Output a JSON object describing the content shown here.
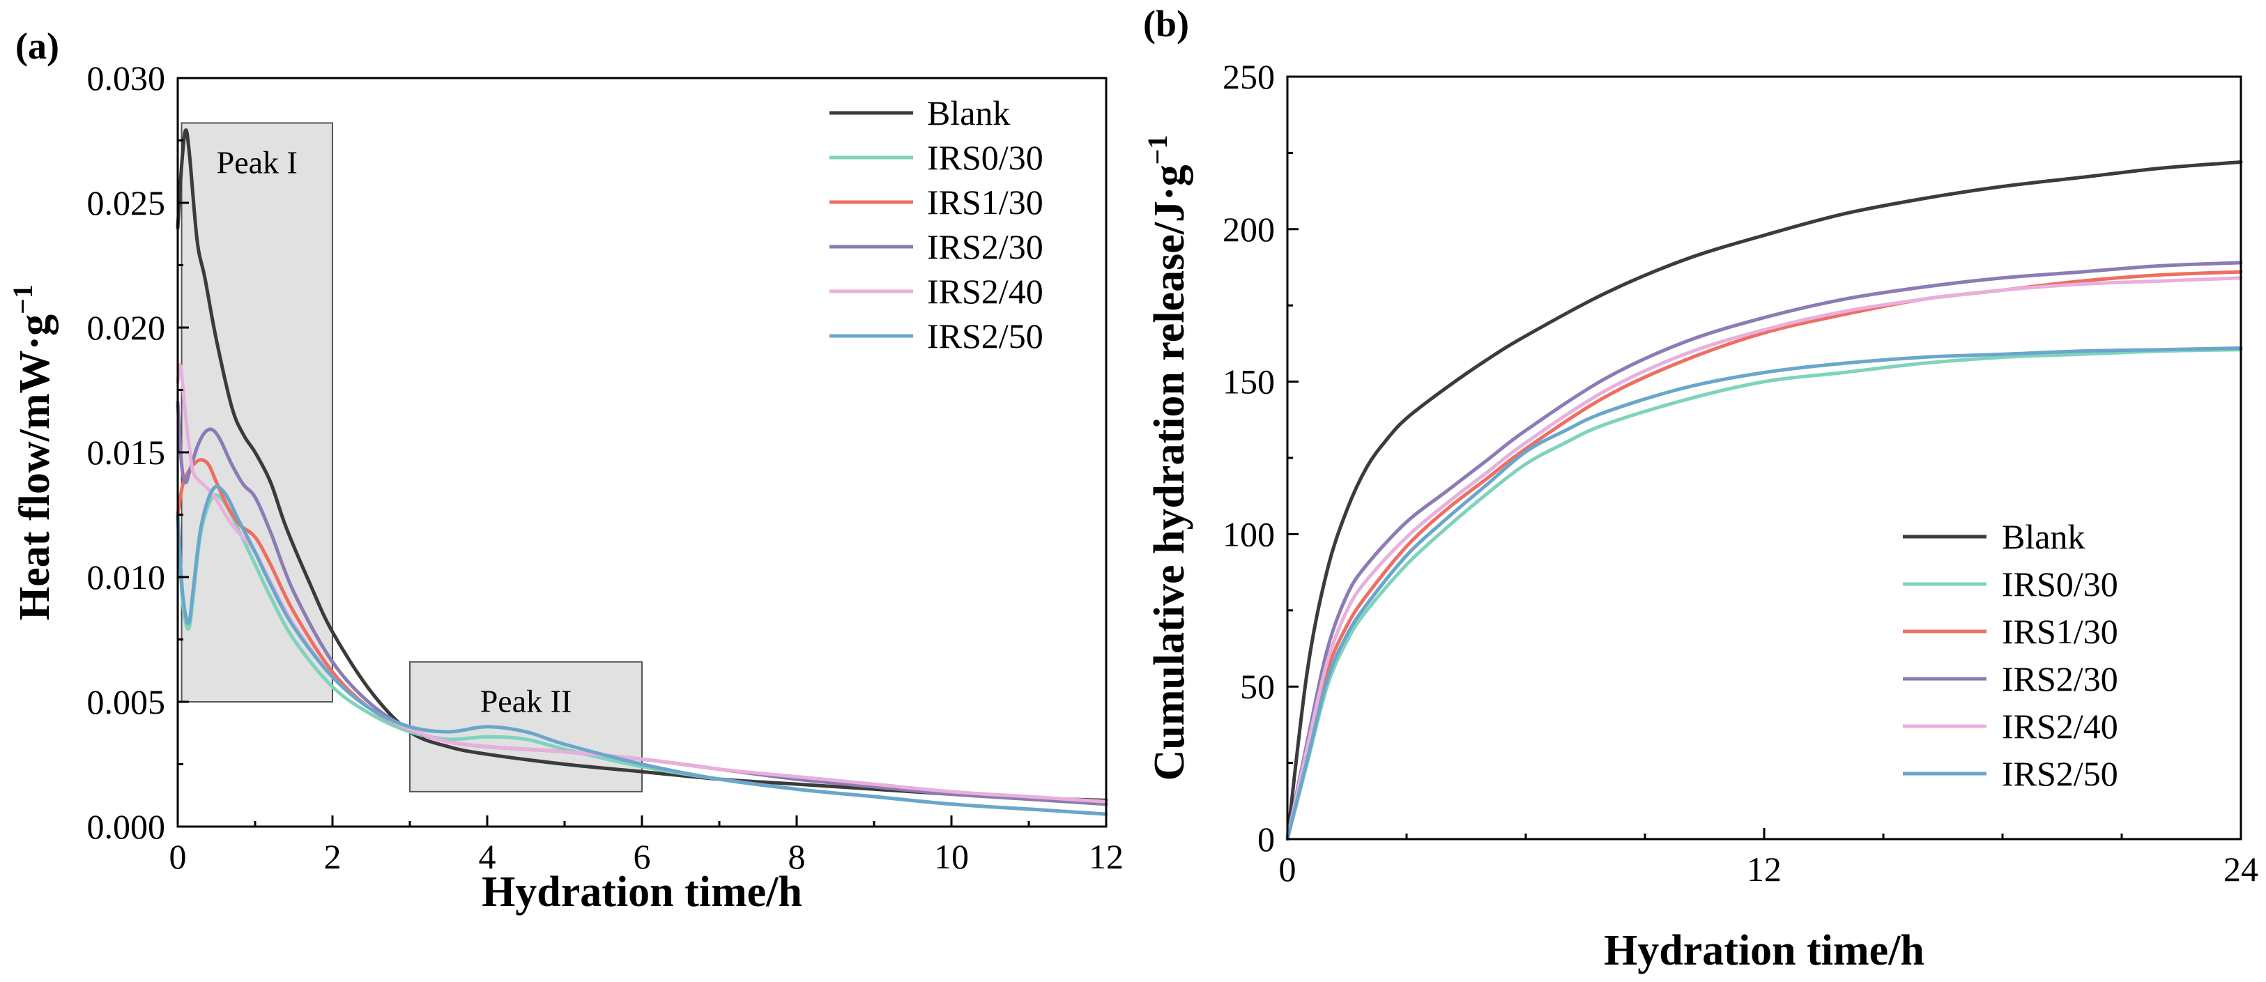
{
  "chart_data": [
    {
      "panel_label": "(a)",
      "type": "line",
      "xlabel": "Hydration time/h",
      "ylabel_main": "Heat flow/mW·g",
      "ylabel_sup": "−1",
      "xlim": [
        0,
        12
      ],
      "ylim": [
        0,
        0.03
      ],
      "xticks": [
        0,
        2,
        4,
        6,
        8,
        10,
        12
      ],
      "yticks": [
        0.0,
        0.005,
        0.01,
        0.015,
        0.02,
        0.025,
        0.03
      ],
      "xtick_labels": [
        "0",
        "2",
        "4",
        "6",
        "8",
        "10",
        "12"
      ],
      "ytick_labels": [
        "0.000",
        "0.005",
        "0.010",
        "0.015",
        "0.020",
        "0.025",
        "0.030"
      ],
      "legend_position": "top-right",
      "annotations": [
        {
          "label": "Peak I",
          "x0": 0.05,
          "x1": 2.0,
          "y0": 0.005,
          "y1": 0.0282
        },
        {
          "label": "Peak II",
          "x0": 3.0,
          "x1": 6.0,
          "y0": 0.0014,
          "y1": 0.0066
        }
      ],
      "series": [
        {
          "name": "Blank",
          "color": "#3b3b3b",
          "x": [
            0,
            0.05,
            0.1,
            0.15,
            0.25,
            0.35,
            0.5,
            0.7,
            0.85,
            1.0,
            1.2,
            1.4,
            1.7,
            2.0,
            2.5,
            3.0,
            3.5,
            4.0,
            5.0,
            6.0,
            7.0,
            8.0,
            9.0,
            10.0,
            11.0,
            12.0
          ],
          "y": [
            0.024,
            0.0265,
            0.0279,
            0.027,
            0.0235,
            0.022,
            0.0195,
            0.0168,
            0.0157,
            0.015,
            0.0138,
            0.012,
            0.0098,
            0.0078,
            0.0054,
            0.0038,
            0.0032,
            0.0029,
            0.0025,
            0.0022,
            0.0019,
            0.0017,
            0.0015,
            0.0013,
            0.00115,
            0.00105
          ]
        },
        {
          "name": "IRS0/30",
          "color": "#7fd3bd",
          "x": [
            0,
            0.05,
            0.1,
            0.15,
            0.2,
            0.3,
            0.45,
            0.6,
            0.8,
            1.0,
            1.2,
            1.5,
            2.0,
            2.5,
            3.0,
            3.5,
            4.0,
            4.5,
            5.0,
            6.0,
            7.0,
            8.0,
            9.0,
            10.0,
            11.0,
            12.0
          ],
          "y": [
            0.0125,
            0.0095,
            0.0082,
            0.008,
            0.0092,
            0.0118,
            0.0132,
            0.013,
            0.0118,
            0.0105,
            0.0092,
            0.0075,
            0.0056,
            0.0045,
            0.0038,
            0.0035,
            0.0036,
            0.0035,
            0.0031,
            0.0024,
            0.0019,
            0.0015,
            0.0012,
            0.0009,
            0.0007,
            0.0005
          ]
        },
        {
          "name": "IRS1/30",
          "color": "#ee6e62",
          "x": [
            0,
            0.05,
            0.1,
            0.2,
            0.3,
            0.4,
            0.5,
            0.65,
            0.8,
            1.0,
            1.2,
            1.5,
            2.0,
            2.5,
            3.0,
            3.5,
            4.0,
            4.5,
            5.0,
            6.0,
            7.0,
            8.0,
            9.0,
            10.0,
            11.0,
            12.0
          ],
          "y": [
            0.0125,
            0.0135,
            0.014,
            0.0145,
            0.0147,
            0.0145,
            0.0138,
            0.0128,
            0.0121,
            0.0116,
            0.0105,
            0.0086,
            0.0062,
            0.0047,
            0.0039,
            0.0034,
            0.0032,
            0.0031,
            0.003,
            0.0027,
            0.0023,
            0.0019,
            0.0016,
            0.0013,
            0.0011,
            0.0009
          ]
        },
        {
          "name": "IRS2/30",
          "color": "#8c7bb5",
          "x": [
            0,
            0.05,
            0.1,
            0.15,
            0.25,
            0.35,
            0.45,
            0.55,
            0.7,
            0.85,
            1.0,
            1.2,
            1.5,
            2.0,
            2.5,
            3.0,
            3.5,
            4.0,
            4.5,
            5.0,
            6.0,
            7.0,
            8.0,
            9.0,
            10.0,
            11.0,
            12.0
          ],
          "y": [
            0.017,
            0.0145,
            0.0138,
            0.0142,
            0.0152,
            0.0158,
            0.0159,
            0.0155,
            0.0145,
            0.0137,
            0.0132,
            0.0118,
            0.0094,
            0.0066,
            0.0049,
            0.0039,
            0.0034,
            0.0032,
            0.0031,
            0.003,
            0.0027,
            0.0023,
            0.0019,
            0.0016,
            0.0013,
            0.0011,
            0.0009
          ]
        },
        {
          "name": "IRS2/40",
          "color": "#e8b0dc",
          "x": [
            0,
            0.03,
            0.06,
            0.1,
            0.15,
            0.2,
            0.3,
            0.4,
            0.5,
            0.7,
            0.9,
            1.0,
            1.2,
            1.5,
            2.0,
            2.5,
            3.0,
            3.5,
            4.0,
            4.5,
            5.0,
            6.0,
            7.0,
            8.0,
            9.0,
            10.0,
            11.0,
            12.0
          ],
          "y": [
            0.0178,
            0.0185,
            0.0178,
            0.0165,
            0.0152,
            0.0142,
            0.0138,
            0.0135,
            0.0131,
            0.0121,
            0.0114,
            0.011,
            0.0098,
            0.0081,
            0.006,
            0.0047,
            0.0039,
            0.0034,
            0.0032,
            0.0031,
            0.003,
            0.0027,
            0.0023,
            0.002,
            0.0017,
            0.0014,
            0.0012,
            0.001
          ]
        },
        {
          "name": "IRS2/50",
          "color": "#6aa6cc",
          "x": [
            0,
            0.05,
            0.1,
            0.15,
            0.2,
            0.3,
            0.45,
            0.6,
            0.8,
            1.0,
            1.2,
            1.5,
            2.0,
            2.5,
            3.0,
            3.5,
            4.0,
            4.5,
            5.0,
            6.0,
            7.0,
            8.0,
            9.0,
            10.0,
            11.0,
            12.0
          ],
          "y": [
            0.0125,
            0.0098,
            0.0085,
            0.0082,
            0.0095,
            0.012,
            0.0135,
            0.0134,
            0.0122,
            0.011,
            0.0097,
            0.008,
            0.006,
            0.0047,
            0.004,
            0.0038,
            0.004,
            0.0038,
            0.0033,
            0.0025,
            0.0019,
            0.0015,
            0.0012,
            0.0009,
            0.0007,
            0.0005
          ]
        }
      ]
    },
    {
      "panel_label": "(b)",
      "type": "line",
      "xlabel": "Hydration time/h",
      "ylabel_main": "Cumulative hydration release/J·g",
      "ylabel_sup": "−1",
      "xlim": [
        0,
        24
      ],
      "ylim": [
        0,
        250
      ],
      "xticks": [
        0,
        12,
        24
      ],
      "yticks": [
        0,
        50,
        100,
        150,
        200,
        250
      ],
      "xtick_labels": [
        "0",
        "12",
        "24"
      ],
      "ytick_labels": [
        "0",
        "50",
        "100",
        "150",
        "200",
        "250"
      ],
      "legend_position": "bottom-right",
      "series": [
        {
          "name": "Blank",
          "color": "#3b3b3b",
          "x": [
            0,
            0.5,
            1,
            1.5,
            2,
            2.5,
            3,
            4,
            5,
            6,
            8,
            10,
            12,
            14,
            16,
            18,
            20,
            22,
            24
          ],
          "y": [
            0,
            55,
            88,
            108,
            122,
            131,
            138,
            148,
            157,
            165,
            179,
            190,
            198,
            205,
            210,
            214,
            217,
            220,
            222
          ]
        },
        {
          "name": "IRS0/30",
          "color": "#7fd3bd",
          "x": [
            0,
            0.5,
            1,
            1.5,
            2,
            3,
            4,
            5,
            6,
            7,
            8,
            10,
            12,
            14,
            16,
            18,
            20,
            22,
            24
          ],
          "y": [
            0,
            25,
            50,
            65,
            75,
            90,
            102,
            113,
            123,
            130,
            136,
            144,
            150,
            153,
            156,
            158,
            159,
            160,
            160.5
          ]
        },
        {
          "name": "IRS1/30",
          "color": "#ee6e62",
          "x": [
            0,
            0.5,
            1,
            1.5,
            2,
            3,
            4,
            5,
            6,
            8,
            10,
            12,
            14,
            16,
            18,
            20,
            22,
            24
          ],
          "y": [
            0,
            28,
            55,
            70,
            80,
            96,
            108,
            118,
            128,
            145,
            157,
            166,
            172,
            177,
            180,
            183,
            185,
            186
          ]
        },
        {
          "name": "IRS2/30",
          "color": "#8c7bb5",
          "x": [
            0,
            0.5,
            1,
            1.5,
            2,
            3,
            4,
            5,
            6,
            8,
            10,
            12,
            14,
            16,
            18,
            20,
            22,
            24
          ],
          "y": [
            0,
            32,
            62,
            80,
            90,
            104,
            114,
            124,
            134,
            151,
            163,
            171,
            177,
            181,
            184,
            186,
            188,
            189
          ]
        },
        {
          "name": "IRS2/40",
          "color": "#e8b0dc",
          "x": [
            0,
            0.5,
            1,
            1.5,
            2,
            3,
            4,
            5,
            6,
            8,
            10,
            12,
            14,
            16,
            18,
            20,
            22,
            24
          ],
          "y": [
            0,
            30,
            58,
            75,
            85,
            99,
            110,
            120,
            130,
            147,
            159,
            167,
            173,
            177,
            180,
            182,
            183,
            184
          ]
        },
        {
          "name": "IRS2/50",
          "color": "#6aa6cc",
          "x": [
            0,
            0.5,
            1,
            1.5,
            2,
            3,
            4,
            5,
            6,
            7,
            8,
            10,
            12,
            14,
            16,
            18,
            20,
            22,
            24
          ],
          "y": [
            0,
            26,
            52,
            67,
            77,
            93,
            105,
            116,
            127,
            134,
            140,
            148,
            153,
            156,
            158,
            159,
            160,
            160.5,
            161
          ]
        }
      ]
    }
  ]
}
